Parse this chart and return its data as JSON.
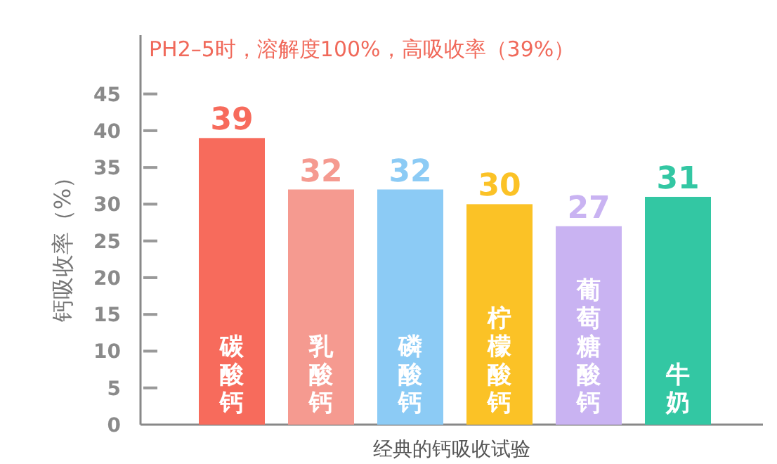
{
  "chart_data": {
    "type": "bar",
    "title": "PH2–5时，溶解度100%，高吸收率（39%）",
    "xlabel": "经典的钙吸收试验",
    "ylabel": "钙吸收率（%）",
    "categories": [
      "碳酸钙",
      "乳酸钙",
      "磷酸钙",
      "柠檬酸钙",
      "葡萄糖酸钙",
      "牛奶"
    ],
    "values": [
      39,
      32,
      32,
      30,
      27,
      31
    ],
    "colors": [
      "#f76b5c",
      "#f59a90",
      "#8ccbf5",
      "#fbc226",
      "#c9b3f2",
      "#33c7a3"
    ],
    "ylim": [
      0,
      53
    ],
    "yticks": [
      0,
      5,
      10,
      15,
      20,
      25,
      30,
      35,
      40,
      45
    ],
    "data_labels": true
  }
}
